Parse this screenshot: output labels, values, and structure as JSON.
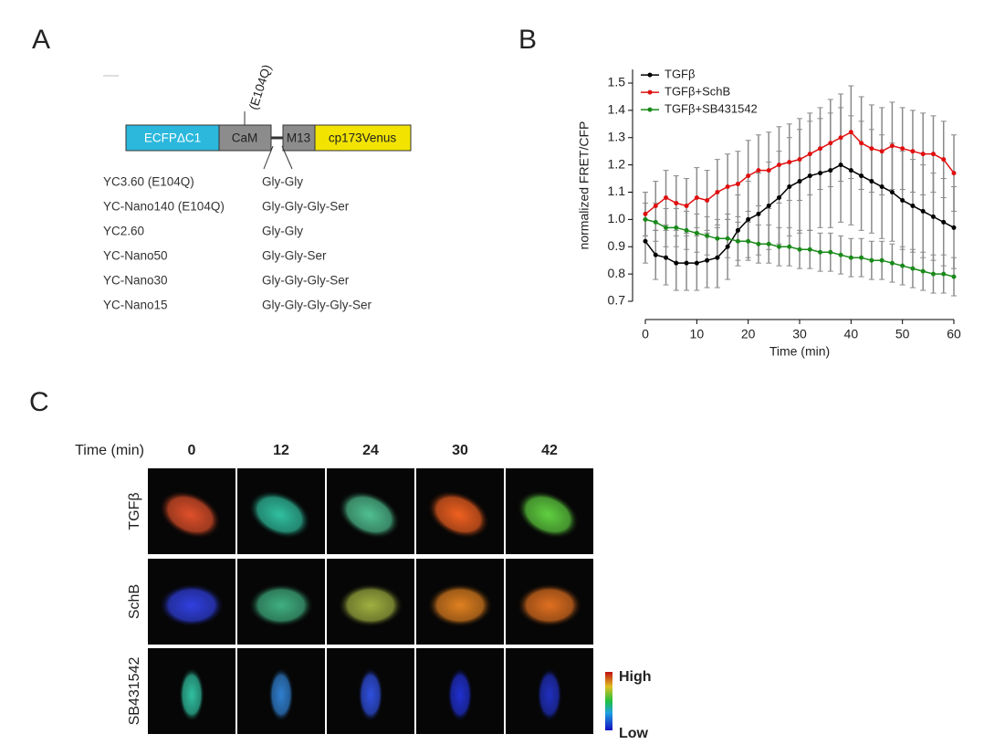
{
  "panel_labels": [
    "A",
    "B",
    "C"
  ],
  "construct": {
    "segments": [
      "ECFPΔC1",
      "CaM",
      "M13",
      "cp173Venus"
    ],
    "mutation": "(E104Q)"
  },
  "variants": [
    {
      "name": "YC3.60 (E104Q)",
      "linker": "Gly-Gly"
    },
    {
      "name": "YC-Nano140 (E104Q)",
      "linker": "Gly-Gly-Gly-Ser"
    },
    {
      "name": "YC2.60",
      "linker": "Gly-Gly"
    },
    {
      "name": "YC-Nano50",
      "linker": "Gly-Gly-Ser"
    },
    {
      "name": "YC-Nano30",
      "linker": "Gly-Gly-Gly-Ser"
    },
    {
      "name": "YC-Nano15",
      "linker": "Gly-Gly-Gly-Gly-Ser"
    }
  ],
  "chart_data": {
    "type": "line",
    "xlabel": "Time (min)",
    "ylabel": "normalized FRET/CFP",
    "x": [
      0,
      2,
      4,
      6,
      8,
      10,
      12,
      14,
      16,
      18,
      20,
      22,
      24,
      26,
      28,
      30,
      32,
      34,
      36,
      38,
      40,
      42,
      44,
      46,
      48,
      50,
      52,
      54,
      56,
      58,
      60
    ],
    "series": [
      {
        "name": "TGFβ",
        "color": "#000000",
        "values": [
          0.92,
          0.87,
          0.86,
          0.84,
          0.84,
          0.84,
          0.85,
          0.86,
          0.9,
          0.96,
          1.0,
          1.02,
          1.05,
          1.08,
          1.12,
          1.14,
          1.16,
          1.17,
          1.18,
          1.2,
          1.18,
          1.16,
          1.14,
          1.12,
          1.1,
          1.07,
          1.05,
          1.03,
          1.01,
          0.99,
          0.97
        ],
        "errors": [
          0.08,
          0.09,
          0.1,
          0.1,
          0.1,
          0.1,
          0.1,
          0.11,
          0.12,
          0.13,
          0.14,
          0.15,
          0.16,
          0.17,
          0.18,
          0.19,
          0.2,
          0.2,
          0.21,
          0.21,
          0.2,
          0.2,
          0.19,
          0.19,
          0.18,
          0.18,
          0.17,
          0.17,
          0.16,
          0.16,
          0.15
        ]
      },
      {
        "name": "TGFβ+SchB",
        "color": "#e01010",
        "values": [
          1.02,
          1.05,
          1.08,
          1.06,
          1.05,
          1.08,
          1.07,
          1.1,
          1.12,
          1.13,
          1.16,
          1.18,
          1.18,
          1.2,
          1.21,
          1.22,
          1.24,
          1.26,
          1.28,
          1.3,
          1.32,
          1.28,
          1.26,
          1.25,
          1.27,
          1.26,
          1.25,
          1.24,
          1.24,
          1.22,
          1.17
        ],
        "errors": [
          0.08,
          0.09,
          0.1,
          0.1,
          0.1,
          0.11,
          0.11,
          0.12,
          0.12,
          0.12,
          0.13,
          0.13,
          0.14,
          0.14,
          0.14,
          0.15,
          0.15,
          0.15,
          0.16,
          0.16,
          0.17,
          0.17,
          0.16,
          0.16,
          0.16,
          0.15,
          0.15,
          0.15,
          0.14,
          0.14,
          0.14
        ]
      },
      {
        "name": "TGFβ+SB431542",
        "color": "#1a8a1a",
        "values": [
          1.0,
          0.99,
          0.97,
          0.97,
          0.96,
          0.95,
          0.94,
          0.93,
          0.93,
          0.92,
          0.92,
          0.91,
          0.91,
          0.9,
          0.9,
          0.89,
          0.89,
          0.88,
          0.88,
          0.87,
          0.86,
          0.86,
          0.85,
          0.85,
          0.84,
          0.83,
          0.82,
          0.81,
          0.8,
          0.8,
          0.79
        ],
        "errors": [
          0.06,
          0.07,
          0.07,
          0.07,
          0.07,
          0.07,
          0.07,
          0.07,
          0.07,
          0.07,
          0.07,
          0.07,
          0.07,
          0.07,
          0.07,
          0.07,
          0.07,
          0.07,
          0.07,
          0.07,
          0.07,
          0.07,
          0.07,
          0.07,
          0.07,
          0.07,
          0.07,
          0.07,
          0.07,
          0.07,
          0.07
        ]
      }
    ],
    "error_color": "#8a8a8a",
    "xlim": [
      0,
      60
    ],
    "xticks": [
      0,
      10,
      20,
      30,
      40,
      50,
      60
    ],
    "ylim": [
      0.7,
      1.55
    ],
    "yticks": [
      0.7,
      0.8,
      0.9,
      {
        "value": 1,
        "label": "1.0"
      },
      1.1,
      1.2,
      1.3,
      1.4,
      1.5
    ],
    "legend": "upper left"
  },
  "images": {
    "time_label": "Time (min)",
    "times": [
      0,
      12,
      24,
      30,
      42
    ],
    "rows": [
      "TGFβ",
      "SchB",
      "SB431542"
    ],
    "scale": {
      "high": "High",
      "low": "Low"
    }
  }
}
